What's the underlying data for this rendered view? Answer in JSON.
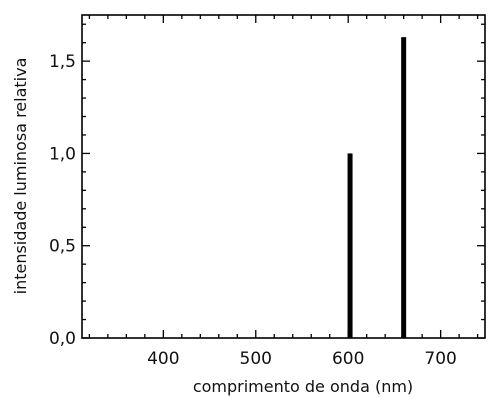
{
  "chart_data": {
    "type": "bar",
    "title": "",
    "xlabel": "comprimento de onda (nm)",
    "ylabel": "intensidade luminosa relativa",
    "xlim": [
      312,
      748
    ],
    "ylim": [
      0,
      1.75
    ],
    "xticks_major": [
      400,
      500,
      600,
      700
    ],
    "xtick_labels": [
      "400",
      "500",
      "600",
      "700"
    ],
    "yticks_major": [
      0,
      0.5,
      1.0,
      1.5
    ],
    "ytick_labels": [
      "0,0",
      "0,5",
      "1,0",
      "1,5"
    ],
    "grid": false,
    "legend": "none",
    "series": [
      {
        "x": [
          602,
          660
        ],
        "values": [
          1.0,
          1.63
        ]
      }
    ],
    "colors": {
      "bar": "#000000",
      "axis": "#000000",
      "background": "#ffffff"
    }
  }
}
